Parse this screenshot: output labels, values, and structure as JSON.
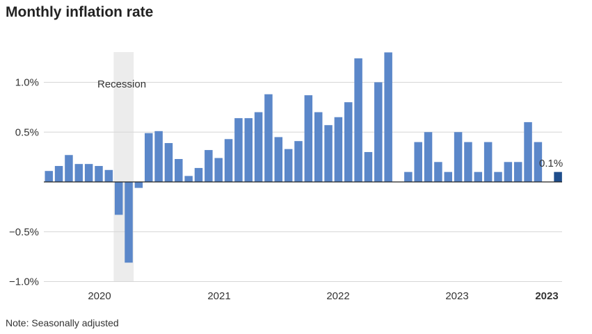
{
  "chart_data": {
    "type": "bar",
    "title": "Monthly inflation rate",
    "note": "Note: Seasonally adjusted",
    "ylim": [
      -1.0,
      1.35
    ],
    "yticks": [
      {
        "value": 1.0,
        "label": "1.0%"
      },
      {
        "value": 0.5,
        "label": "0.5%"
      },
      {
        "value": -0.5,
        "label": "−0.5%"
      },
      {
        "value": -1.0,
        "label": "−1.0%"
      }
    ],
    "xticks": [
      {
        "label": "2020",
        "bold": false
      },
      {
        "label": "2021",
        "bold": false
      },
      {
        "label": "2022",
        "bold": false
      },
      {
        "label": "2023",
        "bold": false
      },
      {
        "label": "2023",
        "bold": true
      }
    ],
    "recession": {
      "label": "Recession",
      "from_index": 7,
      "to_index": 8
    },
    "values": [
      0.11,
      0.16,
      0.27,
      0.18,
      0.18,
      0.16,
      0.12,
      -0.33,
      -0.81,
      -0.06,
      0.49,
      0.51,
      0.39,
      0.23,
      0.06,
      0.14,
      0.32,
      0.24,
      0.43,
      0.64,
      0.64,
      0.7,
      0.88,
      0.45,
      0.33,
      0.41,
      0.87,
      0.7,
      0.57,
      0.65,
      0.8,
      1.24,
      0.3,
      1.0,
      1.3,
      null,
      0.1,
      0.4,
      0.5,
      0.2,
      0.1,
      0.5,
      0.4,
      0.1,
      0.4,
      0.1,
      0.2,
      0.2,
      0.6,
      0.4,
      null,
      0.1
    ],
    "highlight_index": 51,
    "highlight_label": "0.1%",
    "colors": {
      "bar": "#5b87c9",
      "highlight": "#1f4e8c",
      "recession": "#ececec",
      "grid": "#d6d6d6",
      "zero": "#222222"
    }
  }
}
